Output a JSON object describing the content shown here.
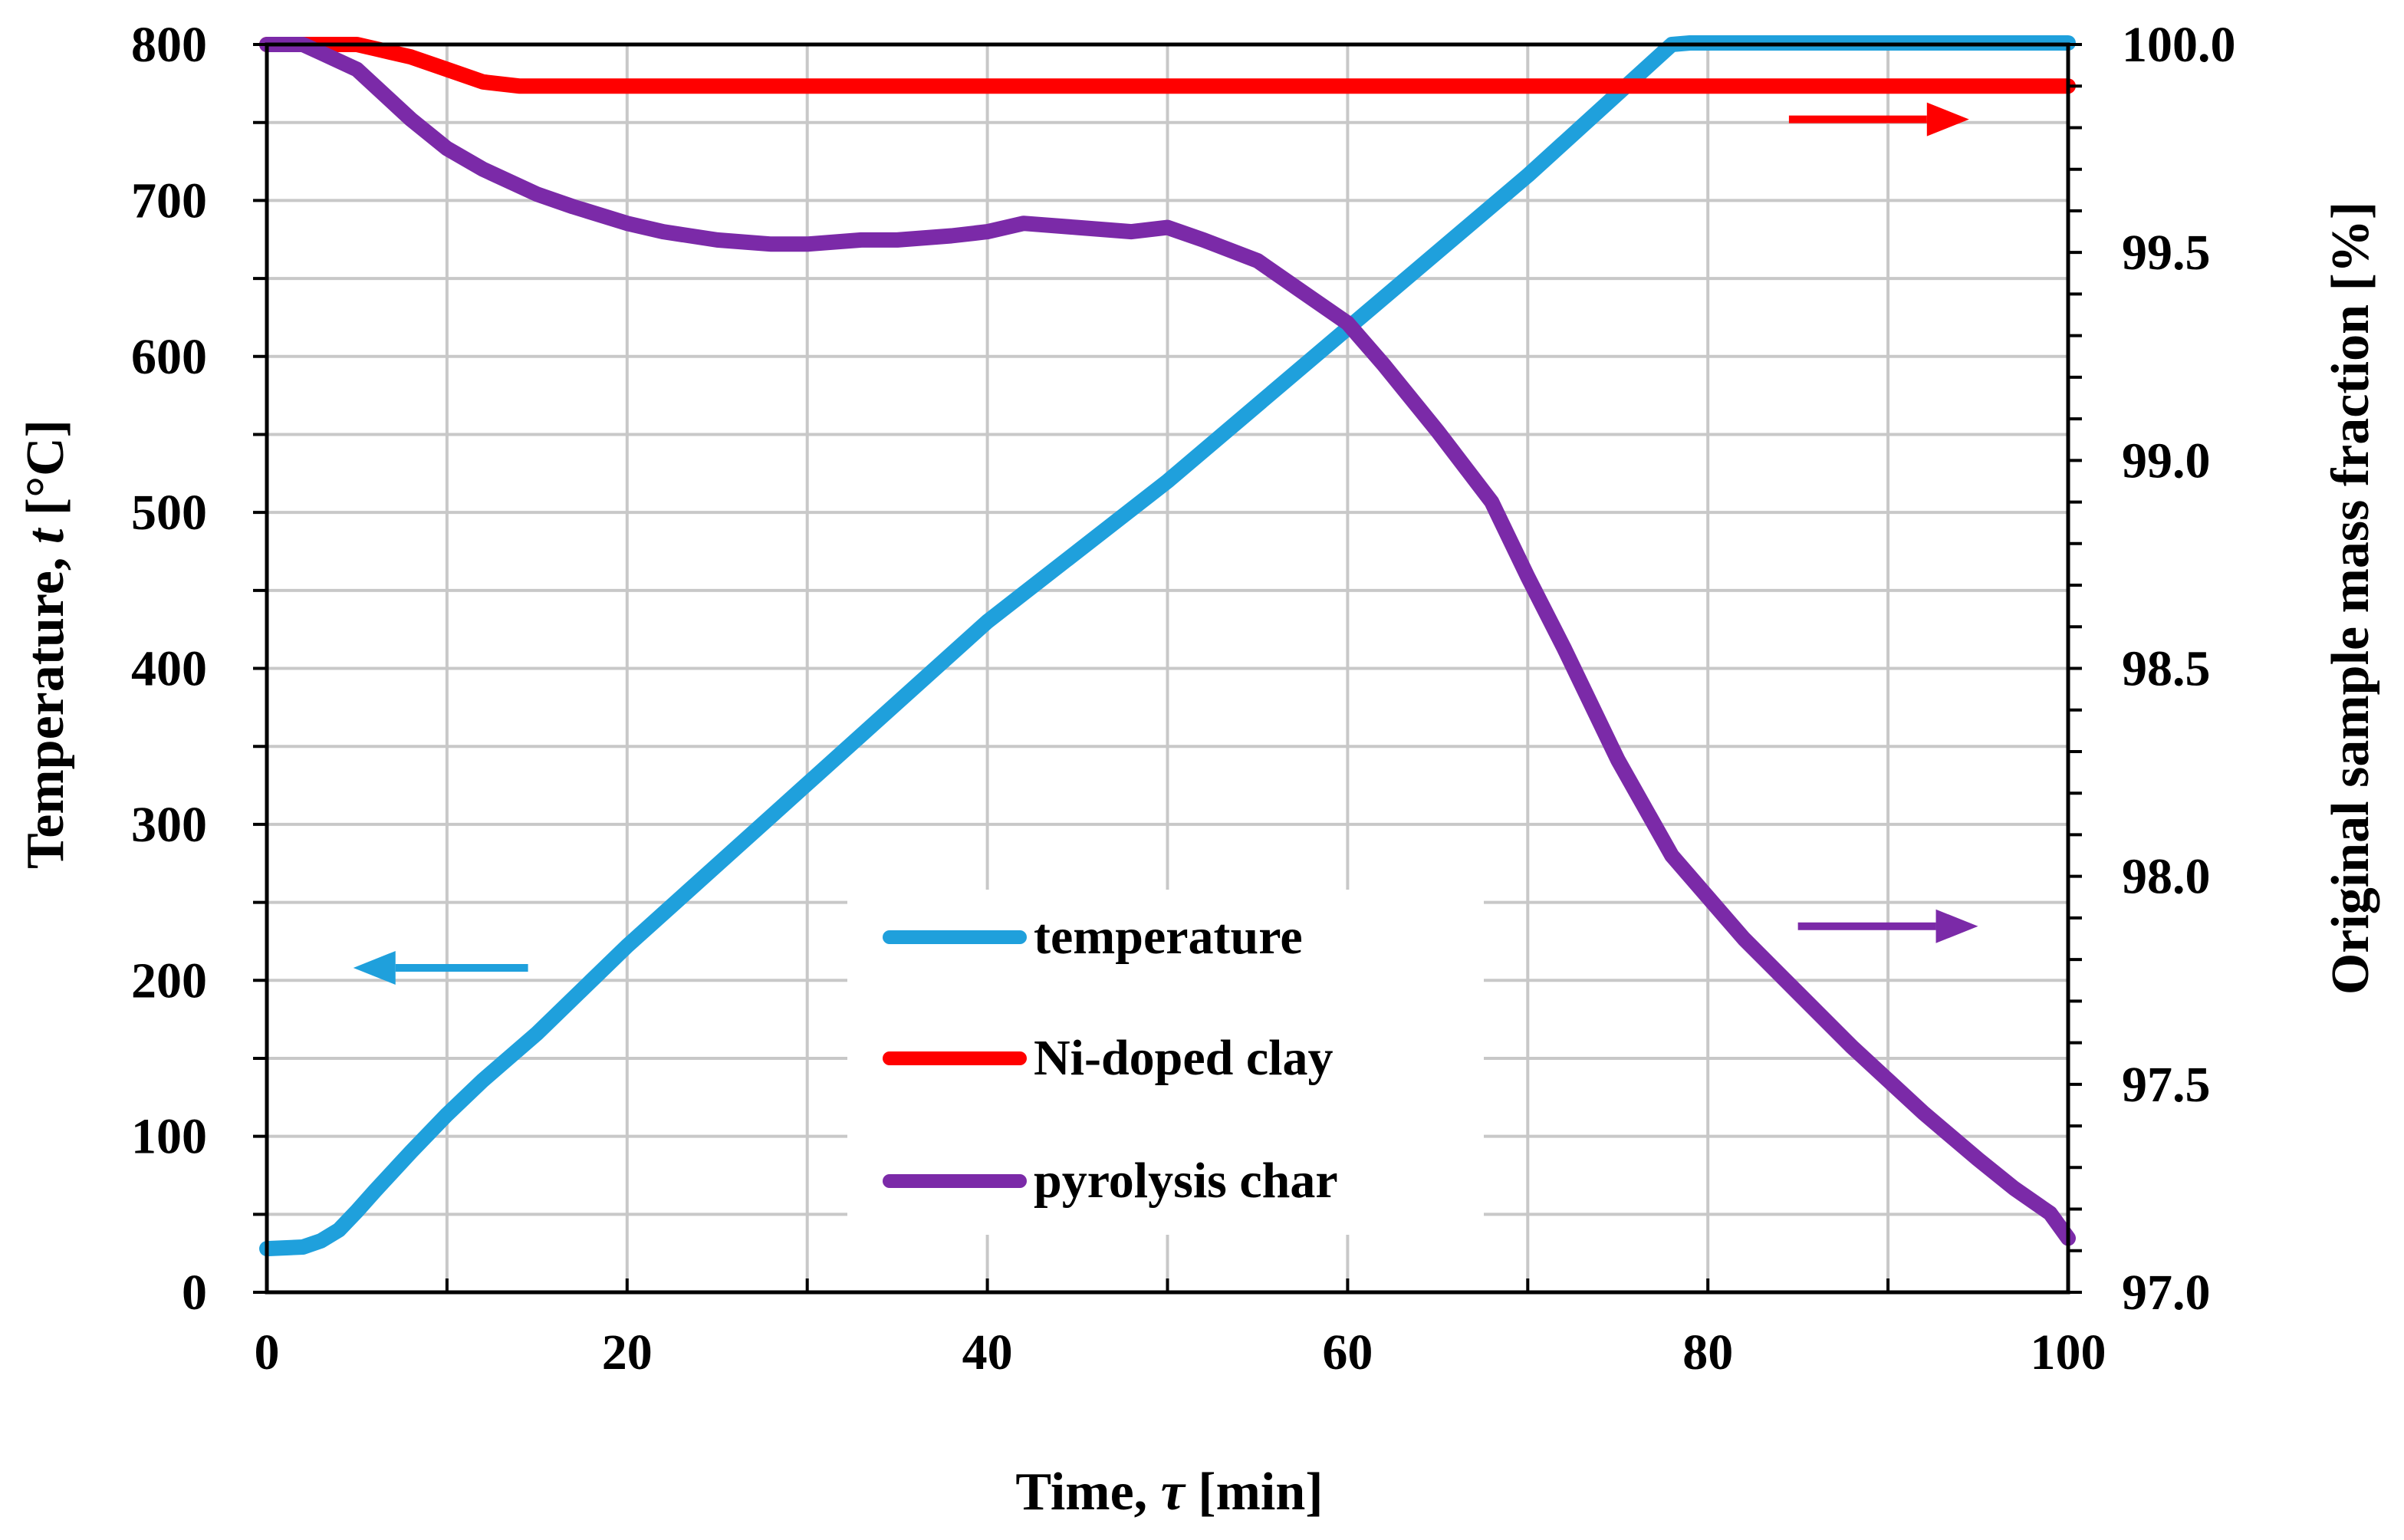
{
  "chart_data": {
    "type": "line",
    "title": "",
    "xlabel": {
      "prefix": "Time, ",
      "symbol": "τ",
      "suffix": " [min]"
    },
    "ylabel_left": {
      "prefix": "Temperature, ",
      "symbol": "t",
      "suffix": " [°C]"
    },
    "ylabel_right": "Original sample mass fraction [%]",
    "xlim": [
      0,
      100
    ],
    "ylim_left": [
      0,
      800
    ],
    "ylim_right": [
      97.0,
      100.0
    ],
    "x_ticks": [
      "0",
      "20",
      "40",
      "60",
      "80",
      "100"
    ],
    "x_tick_values": [
      0,
      20,
      40,
      60,
      80,
      100
    ],
    "y_left_ticks": [
      "0",
      "100",
      "200",
      "300",
      "400",
      "500",
      "600",
      "700",
      "800"
    ],
    "y_left_tick_values": [
      0,
      100,
      200,
      300,
      400,
      500,
      600,
      700,
      800
    ],
    "y_right_ticks": [
      "97.0",
      "97.5",
      "98.0",
      "98.5",
      "99.0",
      "99.5",
      "100.0"
    ],
    "y_right_tick_values": [
      97.0,
      97.5,
      98.0,
      98.5,
      99.0,
      99.5,
      100.0
    ],
    "x_grid_step": 10,
    "y_left_grid_step": 50,
    "grid": true,
    "legend_position": "bottom-center",
    "series": [
      {
        "name": "temperature",
        "axis": "left",
        "color": "#1fa0dc",
        "x": [
          0,
          2,
          3,
          4,
          5,
          6,
          8,
          10,
          12,
          15,
          20,
          30,
          40,
          50,
          60,
          70,
          78,
          79,
          80,
          100
        ],
        "y": [
          28,
          29,
          33,
          40,
          52,
          65,
          90,
          114,
          136,
          166,
          222,
          326,
          430,
          520,
          618,
          716,
          800,
          801,
          801,
          801
        ]
      },
      {
        "name": "Ni-doped clay",
        "axis": "right",
        "color": "#ff0000",
        "x": [
          0,
          5,
          6,
          8,
          10,
          12,
          14,
          100
        ],
        "y": [
          100.0,
          100.0,
          99.99,
          99.97,
          99.94,
          99.91,
          99.9,
          99.9
        ]
      },
      {
        "name": "pyrolysis char",
        "axis": "right",
        "color": "#7b2aa8",
        "x": [
          0,
          2,
          3,
          5,
          7,
          8,
          10,
          12,
          15,
          17,
          20,
          22,
          25,
          28,
          30,
          33,
          35,
          38,
          40,
          42,
          45,
          48,
          50,
          52,
          55,
          57,
          60,
          62,
          65,
          68,
          70,
          72,
          75,
          78,
          80,
          82,
          85,
          88,
          90,
          92,
          95,
          97,
          99,
          100
        ],
        "y": [
          100.0,
          100.0,
          99.98,
          99.94,
          99.86,
          99.82,
          99.75,
          99.7,
          99.64,
          99.61,
          99.57,
          99.55,
          99.53,
          99.52,
          99.52,
          99.53,
          99.53,
          99.54,
          99.55,
          99.57,
          99.56,
          99.55,
          99.56,
          99.53,
          99.48,
          99.42,
          99.33,
          99.23,
          99.07,
          98.9,
          98.72,
          98.55,
          98.28,
          98.05,
          97.95,
          97.85,
          97.72,
          97.59,
          97.51,
          97.43,
          97.32,
          97.25,
          97.19,
          97.13
        ]
      }
    ],
    "annotations": [
      {
        "type": "arrow",
        "direction": "left",
        "color": "#1fa0dc",
        "x_from": 14.5,
        "x_to": 4.8,
        "axis": "left",
        "y": 208
      },
      {
        "type": "arrow",
        "direction": "right",
        "color": "#ff0000",
        "x_from": 84.5,
        "x_to": 94.5,
        "axis": "right",
        "y": 99.82
      },
      {
        "type": "arrow",
        "direction": "right",
        "color": "#7b2aa8",
        "x_from": 85.0,
        "x_to": 95.0,
        "axis": "right",
        "y": 97.88
      }
    ]
  }
}
